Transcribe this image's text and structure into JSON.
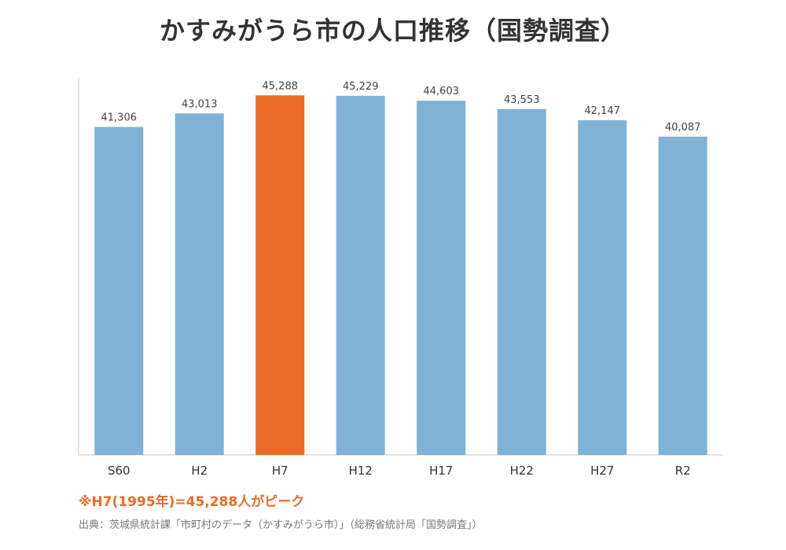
{
  "title": "かすみがうら市の人口推移（国勢調査）",
  "note": "※H7(1995年)=45,288人がピーク",
  "source": "出典：茨城県統計課「市町村のデータ（かすみがうら市）」（総務省統計局「国勢調査」）",
  "colors": {
    "bar": "#7fb2d5",
    "highlight": "#ec6b27",
    "axis": "#cccccc",
    "value_label": "#444444",
    "tick_label": "#333333"
  },
  "chart_data": {
    "type": "bar",
    "title": "かすみがうら市の人口推移（国勢調査）",
    "categories": [
      "S60",
      "H2",
      "H7",
      "H12",
      "H17",
      "H22",
      "H27",
      "R2"
    ],
    "values": [
      41306,
      43013,
      45288,
      45229,
      44603,
      43553,
      42147,
      40087
    ],
    "value_labels": [
      "41,306",
      "43,013",
      "45,288",
      "45,229",
      "44,603",
      "43,553",
      "42,147",
      "40,087"
    ],
    "highlight_category": "H7",
    "ylim": [
      0,
      47000
    ],
    "grid": false,
    "legend": "none",
    "xlabel": "",
    "ylabel": ""
  }
}
